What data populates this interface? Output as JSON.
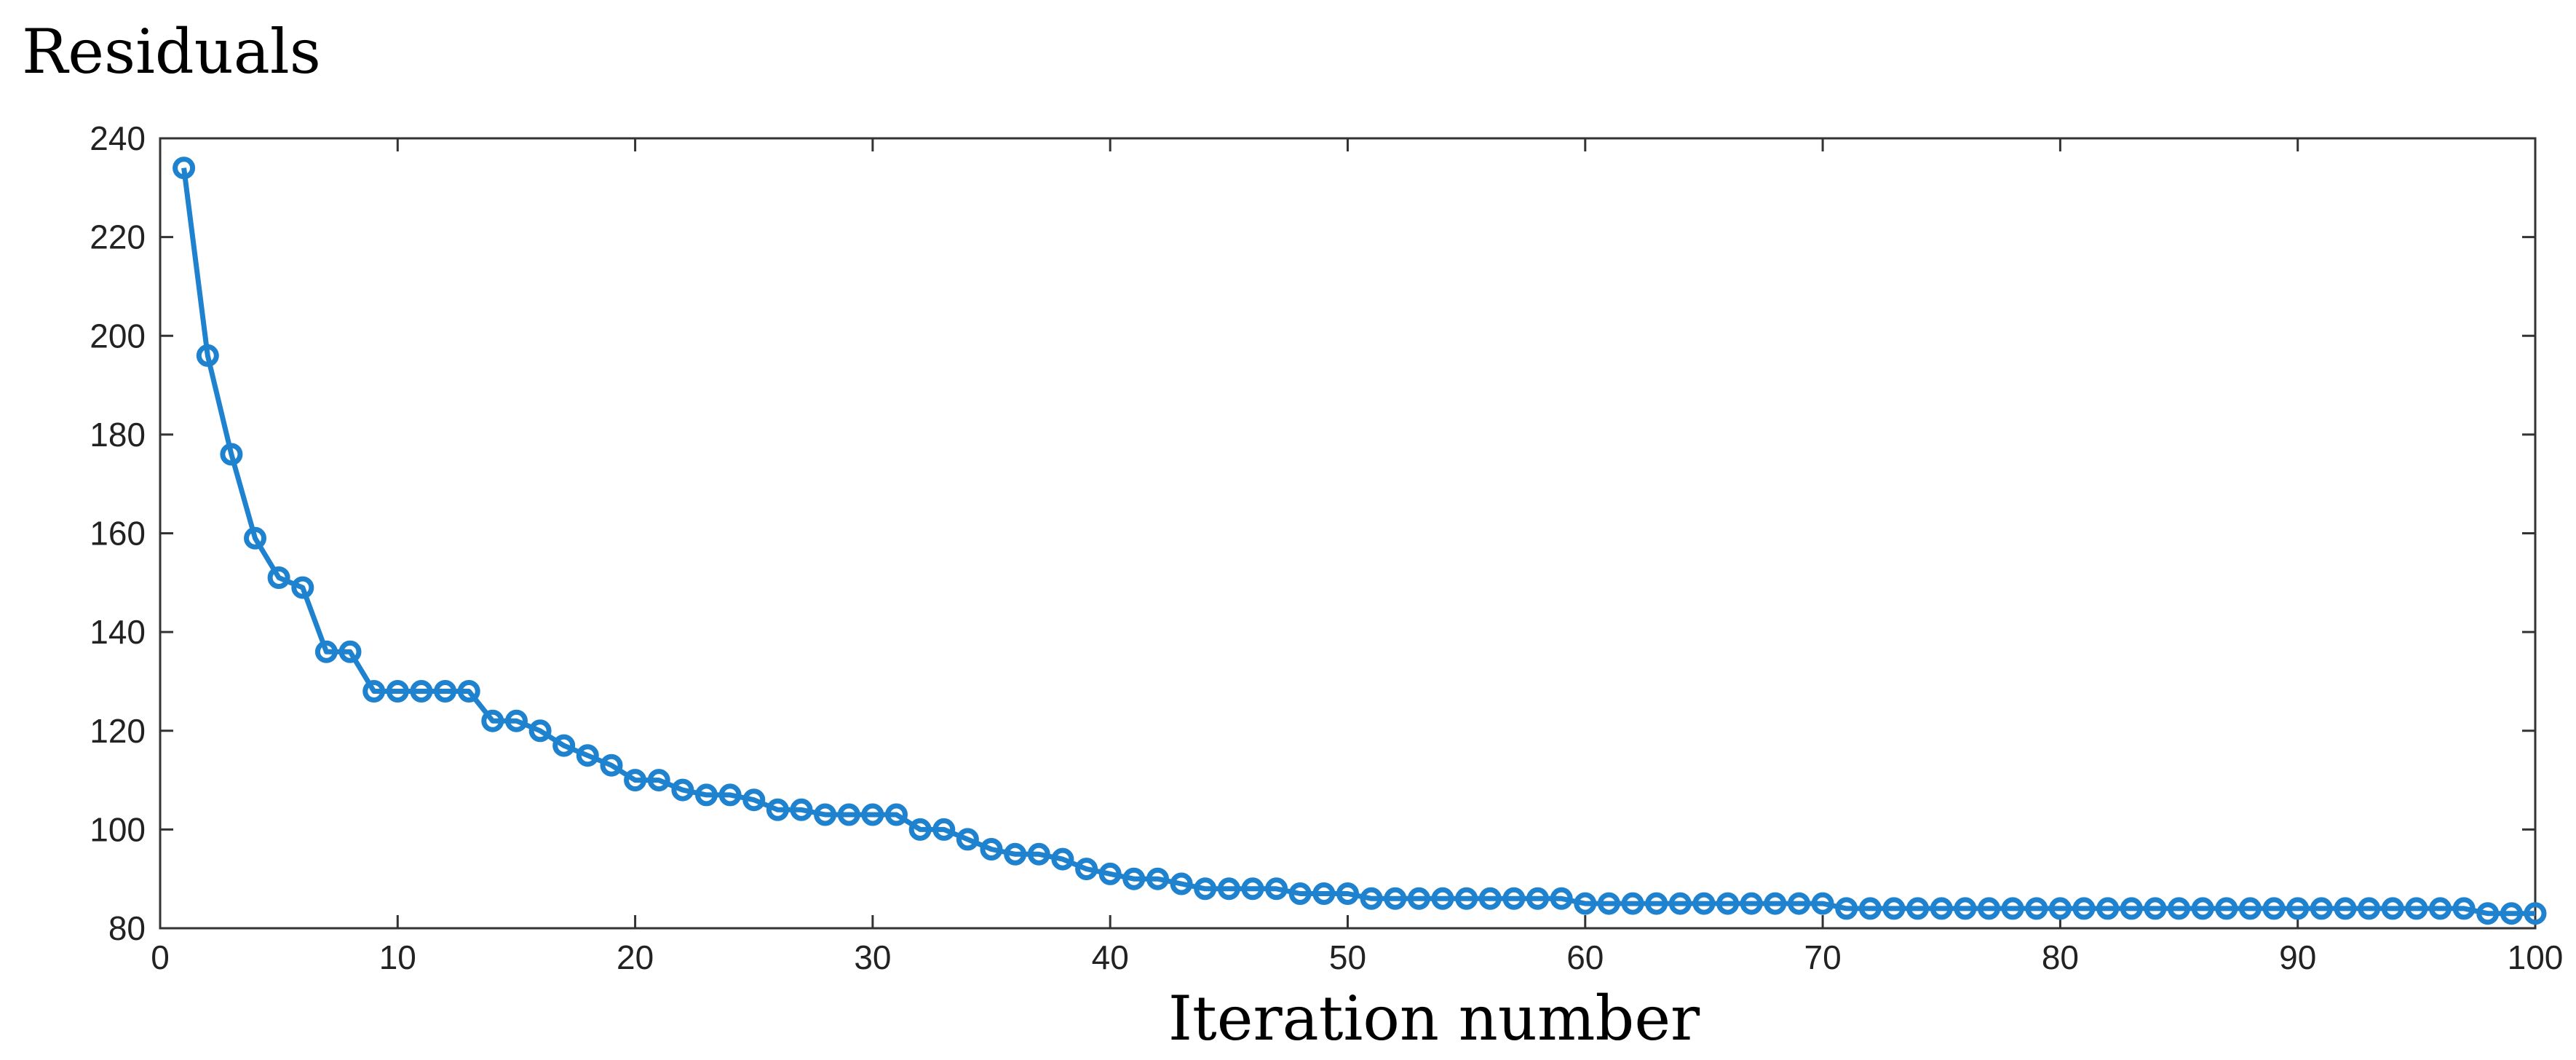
{
  "chart_data": {
    "type": "line",
    "title": "",
    "ylabel": "Residuals",
    "xlabel": "Iteration number",
    "xlim": [
      0,
      100
    ],
    "ylim": [
      80,
      240
    ],
    "xticks": [
      0,
      10,
      20,
      30,
      40,
      50,
      60,
      70,
      80,
      90,
      100
    ],
    "yticks": [
      80,
      100,
      120,
      140,
      160,
      180,
      200,
      220,
      240
    ],
    "grid": false,
    "legend": "none",
    "series": [
      {
        "color": "#1f82cf",
        "marker": "circle",
        "x": [
          1,
          2,
          3,
          4,
          5,
          6,
          7,
          8,
          9,
          10,
          11,
          12,
          13,
          14,
          15,
          16,
          17,
          18,
          19,
          20,
          21,
          22,
          23,
          24,
          25,
          26,
          27,
          28,
          29,
          30,
          31,
          32,
          33,
          34,
          35,
          36,
          37,
          38,
          39,
          40,
          41,
          42,
          43,
          44,
          45,
          46,
          47,
          48,
          49,
          50,
          51,
          52,
          53,
          54,
          55,
          56,
          57,
          58,
          59,
          60,
          61,
          62,
          63,
          64,
          65,
          66,
          67,
          68,
          69,
          70,
          71,
          72,
          73,
          74,
          75,
          76,
          77,
          78,
          79,
          80,
          81,
          82,
          83,
          84,
          85,
          86,
          87,
          88,
          89,
          90,
          91,
          92,
          93,
          94,
          95,
          96,
          97,
          98,
          99,
          100
        ],
        "y": [
          234,
          196,
          176,
          159,
          151,
          149,
          136,
          136,
          128,
          128,
          128,
          128,
          128,
          122,
          122,
          120,
          117,
          115,
          113,
          110,
          110,
          108,
          107,
          107,
          106,
          104,
          104,
          103,
          103,
          103,
          103,
          100,
          100,
          98,
          96,
          95,
          95,
          94,
          92,
          91,
          90,
          90,
          89,
          88,
          88,
          88,
          88,
          87,
          87,
          87,
          86,
          86,
          86,
          86,
          86,
          86,
          86,
          86,
          86,
          85,
          85,
          85,
          85,
          85,
          85,
          85,
          85,
          85,
          85,
          85,
          84,
          84,
          84,
          84,
          84,
          84,
          84,
          84,
          84,
          84,
          84,
          84,
          84,
          84,
          84,
          84,
          84,
          84,
          84,
          84,
          84,
          84,
          84,
          84,
          84,
          84,
          84,
          83,
          83,
          83
        ]
      }
    ]
  }
}
